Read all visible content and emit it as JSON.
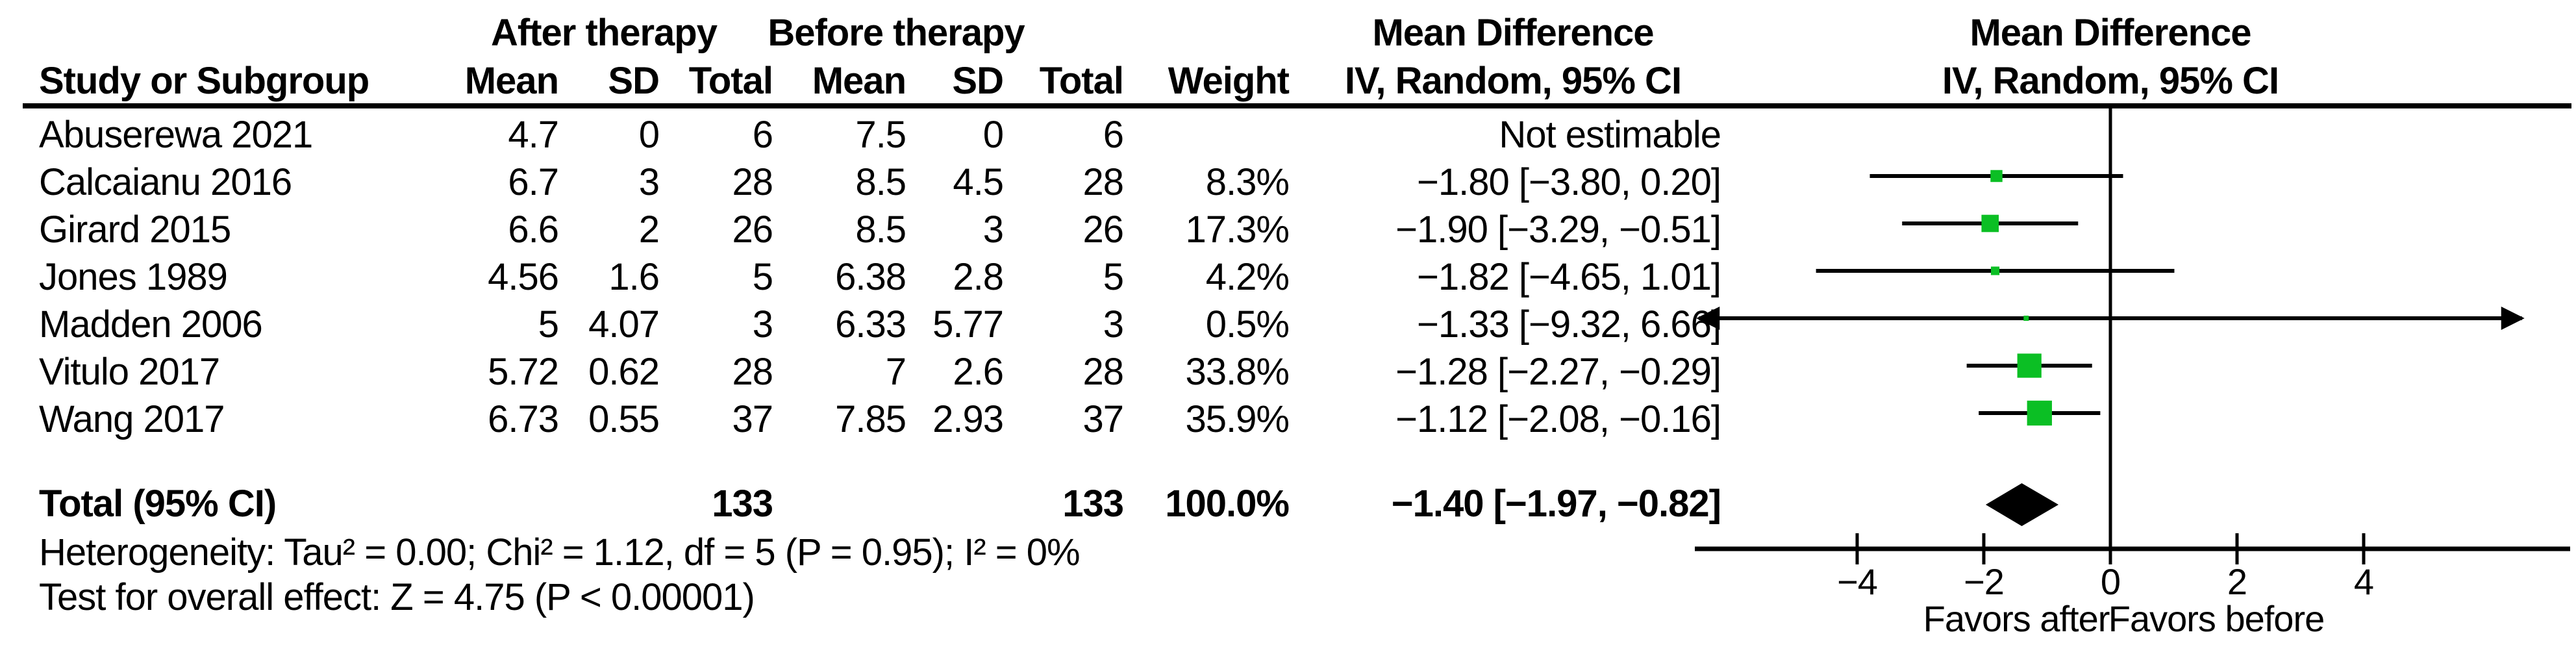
{
  "headers": {
    "study": "Study or Subgroup",
    "after_group": "After therapy",
    "before_group": "Before therapy",
    "mean": "Mean",
    "sd": "SD",
    "total": "Total",
    "weight": "Weight",
    "md_title": "Mean Difference",
    "md_subtitle": "IV, Random, 95% CI"
  },
  "rows": [
    {
      "study": "Abuserewa 2021",
      "mean_after": "4.7",
      "sd_after": "0",
      "total_after": "6",
      "mean_before": "7.5",
      "sd_before": "0",
      "total_before": "6",
      "weight": "",
      "md_ci": "Not estimable"
    },
    {
      "study": "Calcaianu 2016",
      "mean_after": "6.7",
      "sd_after": "3",
      "total_after": "28",
      "mean_before": "8.5",
      "sd_before": "4.5",
      "total_before": "28",
      "weight": "8.3%",
      "md_ci": "−1.80 [−3.80, 0.20]"
    },
    {
      "study": "Girard 2015",
      "mean_after": "6.6",
      "sd_after": "2",
      "total_after": "26",
      "mean_before": "8.5",
      "sd_before": "3",
      "total_before": "26",
      "weight": "17.3%",
      "md_ci": "−1.90 [−3.29, −0.51]"
    },
    {
      "study": "Jones 1989",
      "mean_after": "4.56",
      "sd_after": "1.6",
      "total_after": "5",
      "mean_before": "6.38",
      "sd_before": "2.8",
      "total_before": "5",
      "weight": "4.2%",
      "md_ci": "−1.82 [−4.65, 1.01]"
    },
    {
      "study": "Madden 2006",
      "mean_after": "5",
      "sd_after": "4.07",
      "total_after": "3",
      "mean_before": "6.33",
      "sd_before": "5.77",
      "total_before": "3",
      "weight": "0.5%",
      "md_ci": "−1.33 [−9.32, 6.66]"
    },
    {
      "study": "Vitulo 2017",
      "mean_after": "5.72",
      "sd_after": "0.62",
      "total_after": "28",
      "mean_before": "7",
      "sd_before": "2.6",
      "total_before": "28",
      "weight": "33.8%",
      "md_ci": "−1.28 [−2.27, −0.29]"
    },
    {
      "study": "Wang 2017",
      "mean_after": "6.73",
      "sd_after": "0.55",
      "total_after": "37",
      "mean_before": "7.85",
      "sd_before": "2.93",
      "total_before": "37",
      "weight": "35.9%",
      "md_ci": "−1.12 [−2.08, −0.16]"
    }
  ],
  "total_row": {
    "label": "Total (95% CI)",
    "total_after": "133",
    "total_before": "133",
    "weight": "100.0%",
    "md_ci": "−1.40 [−1.97, −0.82]"
  },
  "footnotes": {
    "heterogeneity": "Heterogeneity: Tau² = 0.00; Chi² = 1.12, df = 5 (P = 0.95); I² = 0%",
    "overall_effect": "Test for overall effect: Z = 4.75 (P < 0.00001)"
  },
  "chart_data": {
    "type": "forest",
    "effect_measure": "Mean Difference, IV, Random, 95% CI",
    "x_ticks": [
      -4,
      -2,
      0,
      2,
      4
    ],
    "x_plot_range": [
      -6.5,
      6.5
    ],
    "favors_left": "Favors after",
    "favors_right": "Favors before",
    "marker_color": "#0bbf24",
    "line_color": "#000000",
    "studies": [
      {
        "name": "Abuserewa 2021",
        "estimable": false
      },
      {
        "name": "Calcaianu 2016",
        "estimable": true,
        "est": -1.8,
        "lo": -3.8,
        "hi": 0.2,
        "weight_pct": 8.3
      },
      {
        "name": "Girard 2015",
        "estimable": true,
        "est": -1.9,
        "lo": -3.29,
        "hi": -0.51,
        "weight_pct": 17.3
      },
      {
        "name": "Jones 1989",
        "estimable": true,
        "est": -1.82,
        "lo": -4.65,
        "hi": 1.01,
        "weight_pct": 4.2
      },
      {
        "name": "Madden 2006",
        "estimable": true,
        "est": -1.33,
        "lo": -9.32,
        "hi": 6.66,
        "weight_pct": 0.5
      },
      {
        "name": "Vitulo 2017",
        "estimable": true,
        "est": -1.28,
        "lo": -2.27,
        "hi": -0.29,
        "weight_pct": 33.8
      },
      {
        "name": "Wang 2017",
        "estimable": true,
        "est": -1.12,
        "lo": -2.08,
        "hi": -0.16,
        "weight_pct": 35.9
      }
    ],
    "overall": {
      "est": -1.4,
      "lo": -1.97,
      "hi": -0.82
    }
  }
}
